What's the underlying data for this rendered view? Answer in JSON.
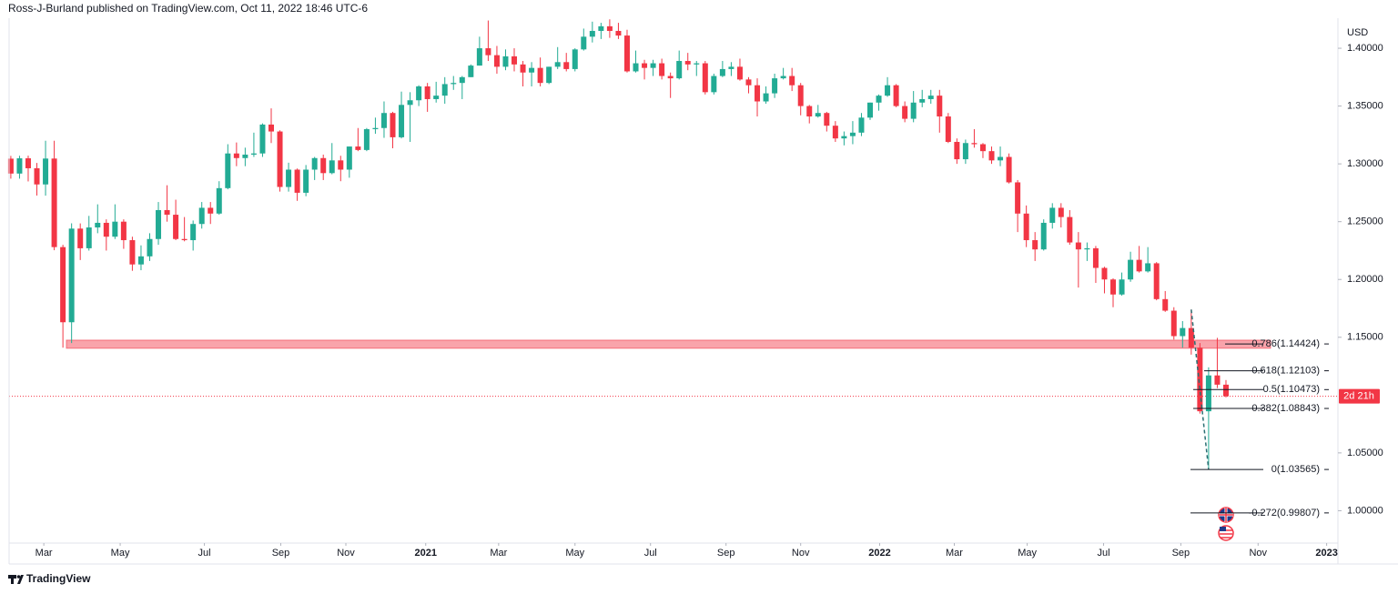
{
  "chart_data": {
    "type": "candlestick",
    "title": "Ross-J-Burland published on TradingView.com, Oct 11, 2022 18:46 UTC-6",
    "currency": "USD",
    "countdown": "2d 21h",
    "brand": "TradingView",
    "up_color": "#22ab94",
    "down_color": "#f23645",
    "open": [
      1.3045,
      1.2916,
      1.3048,
      1.2962,
      1.2822,
      1.3046,
      1.228,
      1.163,
      1.244,
      1.227,
      1.245,
      1.249,
      1.237,
      1.25,
      1.234,
      1.213,
      1.22,
      1.235,
      1.26,
      1.256,
      1.235,
      1.234,
      1.248,
      1.262,
      1.257,
      1.279,
      1.309,
      1.305,
      1.308,
      1.309,
      1.334,
      1.328,
      1.28,
      1.295,
      1.275,
      1.295,
      1.305,
      1.292,
      1.303,
      1.295,
      1.315,
      1.312,
      1.33,
      1.331,
      1.344,
      1.323,
      1.351,
      1.355,
      1.367,
      1.356,
      1.359,
      1.369,
      1.37,
      1.375,
      1.385,
      1.4,
      1.394,
      1.384,
      1.393,
      1.386,
      1.379,
      1.383,
      1.37,
      1.384,
      1.388,
      1.382,
      1.399,
      1.41,
      1.415,
      1.419,
      1.415,
      1.411,
      1.38,
      1.387,
      1.383,
      1.387,
      1.376,
      1.374,
      1.389,
      1.386,
      1.387,
      1.362,
      1.376,
      1.382,
      1.384,
      1.373,
      1.368,
      1.354,
      1.361,
      1.374,
      1.376,
      1.368,
      1.35,
      1.341,
      1.344,
      1.333,
      1.322,
      1.324,
      1.327,
      1.34,
      1.353,
      1.359,
      1.368,
      1.35,
      1.339,
      1.353,
      1.356,
      1.359,
      1.341,
      1.319,
      1.304,
      1.318,
      1.317,
      1.311,
      1.303,
      1.306,
      1.284,
      1.257,
      1.234,
      1.226,
      1.249,
      1.262,
      1.254,
      1.232,
      1.226,
      1.227,
      1.21,
      1.2,
      1.187,
      1.2,
      1.217,
      1.207,
      1.214,
      1.183,
      1.173,
      1.151,
      1.158,
      1.141,
      1.086,
      1.117,
      1.109
    ],
    "high": [
      1.3069,
      1.307,
      1.3071,
      1.3008,
      1.32,
      1.32,
      1.23,
      1.2486,
      1.2485,
      1.255,
      1.265,
      1.252,
      1.265,
      1.252,
      1.237,
      1.2295,
      1.24,
      1.267,
      1.2815,
      1.269,
      1.254,
      1.251,
      1.267,
      1.267,
      1.285,
      1.317,
      1.3185,
      1.314,
      1.327,
      1.335,
      1.348,
      1.329,
      1.301,
      1.296,
      1.299,
      1.306,
      1.308,
      1.318,
      1.307,
      1.315,
      1.331,
      1.331,
      1.34,
      1.354,
      1.345,
      1.3625,
      1.362,
      1.368,
      1.37,
      1.371,
      1.375,
      1.376,
      1.376,
      1.386,
      1.41,
      1.424,
      1.402,
      1.399,
      1.4,
      1.389,
      1.388,
      1.392,
      1.384,
      1.401,
      1.396,
      1.4,
      1.417,
      1.423,
      1.422,
      1.425,
      1.422,
      1.416,
      1.398,
      1.39,
      1.39,
      1.391,
      1.379,
      1.398,
      1.396,
      1.389,
      1.389,
      1.378,
      1.389,
      1.388,
      1.391,
      1.375,
      1.374,
      1.367,
      1.378,
      1.383,
      1.383,
      1.37,
      1.351,
      1.351,
      1.345,
      1.337,
      1.328,
      1.337,
      1.344,
      1.353,
      1.36,
      1.375,
      1.369,
      1.354,
      1.363,
      1.364,
      1.364,
      1.364,
      1.344,
      1.322,
      1.321,
      1.33,
      1.318,
      1.315,
      1.315,
      1.309,
      1.286,
      1.264,
      1.241,
      1.252,
      1.266,
      1.266,
      1.26,
      1.241,
      1.232,
      1.229,
      1.211,
      1.201,
      1.206,
      1.224,
      1.229,
      1.228,
      1.215,
      1.19,
      1.176,
      1.164,
      1.174,
      1.145,
      1.124,
      1.1495,
      1.113
    ],
    "low": [
      1.2872,
      1.2872,
      1.2848,
      1.2726,
      1.2725,
      1.2253,
      1.141,
      1.145,
      1.2168,
      1.225,
      1.24,
      1.225,
      1.235,
      1.2265,
      1.2075,
      1.208,
      1.216,
      1.23,
      1.25,
      1.234,
      1.233,
      1.225,
      1.244,
      1.248,
      1.256,
      1.278,
      1.298,
      1.298,
      1.306,
      1.306,
      1.318,
      1.276,
      1.276,
      1.268,
      1.272,
      1.286,
      1.286,
      1.291,
      1.285,
      1.288,
      1.311,
      1.311,
      1.326,
      1.3225,
      1.3135,
      1.322,
      1.319,
      1.35,
      1.345,
      1.353,
      1.352,
      1.364,
      1.356,
      1.375,
      1.385,
      1.389,
      1.378,
      1.381,
      1.38,
      1.367,
      1.367,
      1.367,
      1.369,
      1.382,
      1.38,
      1.38,
      1.398,
      1.405,
      1.408,
      1.409,
      1.408,
      1.379,
      1.379,
      1.373,
      1.376,
      1.373,
      1.357,
      1.373,
      1.381,
      1.376,
      1.36,
      1.36,
      1.375,
      1.376,
      1.372,
      1.361,
      1.341,
      1.352,
      1.357,
      1.373,
      1.363,
      1.342,
      1.335,
      1.34,
      1.328,
      1.319,
      1.316,
      1.317,
      1.324,
      1.338,
      1.346,
      1.358,
      1.349,
      1.336,
      1.336,
      1.349,
      1.352,
      1.327,
      1.318,
      1.3,
      1.3,
      1.314,
      1.305,
      1.3,
      1.298,
      1.283,
      1.241,
      1.228,
      1.216,
      1.225,
      1.244,
      1.245,
      1.23,
      1.193,
      1.216,
      1.197,
      1.188,
      1.176,
      1.186,
      1.198,
      1.206,
      1.206,
      1.182,
      1.172,
      1.148,
      1.141,
      1.135,
      1.084,
      1.0356,
      1.106,
      1.098
    ],
    "close": [
      1.2916,
      1.3048,
      1.2962,
      1.2822,
      1.3046,
      1.228,
      1.163,
      1.244,
      1.227,
      1.245,
      1.249,
      1.237,
      1.25,
      1.234,
      1.213,
      1.22,
      1.235,
      1.26,
      1.256,
      1.235,
      1.234,
      1.248,
      1.262,
      1.257,
      1.279,
      1.309,
      1.305,
      1.308,
      1.309,
      1.334,
      1.328,
      1.28,
      1.295,
      1.275,
      1.295,
      1.305,
      1.292,
      1.303,
      1.295,
      1.315,
      1.312,
      1.33,
      1.331,
      1.344,
      1.323,
      1.351,
      1.355,
      1.367,
      1.356,
      1.359,
      1.369,
      1.37,
      1.375,
      1.385,
      1.4,
      1.394,
      1.384,
      1.393,
      1.386,
      1.379,
      1.383,
      1.37,
      1.384,
      1.388,
      1.382,
      1.399,
      1.41,
      1.415,
      1.419,
      1.415,
      1.411,
      1.38,
      1.387,
      1.383,
      1.387,
      1.376,
      1.374,
      1.389,
      1.386,
      1.387,
      1.362,
      1.376,
      1.382,
      1.384,
      1.373,
      1.368,
      1.354,
      1.361,
      1.374,
      1.376,
      1.368,
      1.35,
      1.341,
      1.344,
      1.333,
      1.322,
      1.324,
      1.327,
      1.34,
      1.353,
      1.359,
      1.368,
      1.35,
      1.339,
      1.353,
      1.356,
      1.359,
      1.341,
      1.319,
      1.304,
      1.318,
      1.317,
      1.311,
      1.303,
      1.306,
      1.284,
      1.257,
      1.234,
      1.226,
      1.249,
      1.262,
      1.254,
      1.232,
      1.226,
      1.227,
      1.21,
      1.2,
      1.187,
      1.2,
      1.217,
      1.207,
      1.214,
      1.183,
      1.173,
      1.151,
      1.158,
      1.141,
      1.086,
      1.117,
      1.109,
      1.099
    ],
    "xlim": [
      -0.2,
      152.9
    ],
    "xticks": [
      {
        "value": 3.8,
        "label": "Mar"
      },
      {
        "value": 12.6,
        "label": "May"
      },
      {
        "value": 22.3,
        "label": "Jul"
      },
      {
        "value": 31.1,
        "label": "Sep"
      },
      {
        "value": 38.6,
        "label": "Nov"
      },
      {
        "value": 47.8,
        "label": "2021"
      },
      {
        "value": 56.2,
        "label": "Mar"
      },
      {
        "value": 65.0,
        "label": "May"
      },
      {
        "value": 73.7,
        "label": "Jul"
      },
      {
        "value": 82.4,
        "label": "Sep"
      },
      {
        "value": 91.0,
        "label": "Nov"
      },
      {
        "value": 100.1,
        "label": "2022"
      },
      {
        "value": 108.7,
        "label": "Mar"
      },
      {
        "value": 117.1,
        "label": "May"
      },
      {
        "value": 125.9,
        "label": "Jul"
      },
      {
        "value": 134.8,
        "label": "Sep"
      },
      {
        "value": 143.7,
        "label": "Nov"
      },
      {
        "value": 151.6,
        "label": "2023"
      }
    ],
    "ylim": [
      0.972,
      1.426
    ],
    "yticks": [
      {
        "value": 1.0,
        "label": "1.00000"
      },
      {
        "value": 1.05,
        "label": "1.05000"
      },
      {
        "value": 1.15,
        "label": "1.15000"
      },
      {
        "value": 1.2,
        "label": "1.20000"
      },
      {
        "value": 1.25,
        "label": "1.25000"
      },
      {
        "value": 1.3,
        "label": "1.30000"
      },
      {
        "value": 1.35,
        "label": "1.35000"
      },
      {
        "value": 1.4,
        "label": "1.40000"
      }
    ],
    "support_zone": [
      1.1405,
      1.1475
    ],
    "fib_levels": [
      {
        "value": 1.14424,
        "label": "0.786(1.14424)"
      },
      {
        "value": 1.12103,
        "label": "0.618(1.12103)"
      },
      {
        "value": 1.10473,
        "label": "0.5(1.10473)"
      },
      {
        "value": 1.08843,
        "label": "0.382(1.08843)"
      },
      {
        "value": 1.03565,
        "label": "0(1.03565)"
      },
      {
        "value": 0.99807,
        "label": "-0.272(0.99807)"
      }
    ]
  }
}
